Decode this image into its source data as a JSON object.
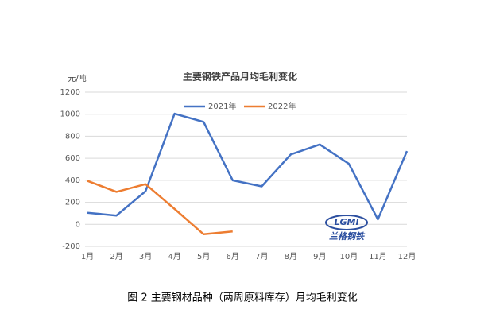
{
  "chart_data": {
    "type": "line",
    "title": "主要钢铁产品月均毛利变化",
    "y_label": "元/吨",
    "categories": [
      "1月",
      "2月",
      "3月",
      "4月",
      "5月",
      "6月",
      "7月",
      "8月",
      "9月",
      "10月",
      "11月",
      "12月"
    ],
    "series": [
      {
        "name": "2021年",
        "color": "#4472c4",
        "values": [
          105,
          80,
          300,
          1005,
          930,
          400,
          345,
          635,
          725,
          550,
          45,
          665
        ]
      },
      {
        "name": "2022年",
        "color": "#ed7d31",
        "values": [
          395,
          295,
          365,
          140,
          -90,
          -65,
          null,
          null,
          null,
          null,
          null,
          null
        ]
      }
    ],
    "ylim": [
      -200,
      1200
    ],
    "yticks": [
      -200,
      0,
      200,
      400,
      600,
      800,
      1000,
      1200
    ],
    "grid": true,
    "legend": "top",
    "logo": {
      "mark": "LGMI",
      "text": "兰格钢铁"
    },
    "caption": "图 2 主要钢材品种（两周原料库存）月均毛利变化"
  }
}
